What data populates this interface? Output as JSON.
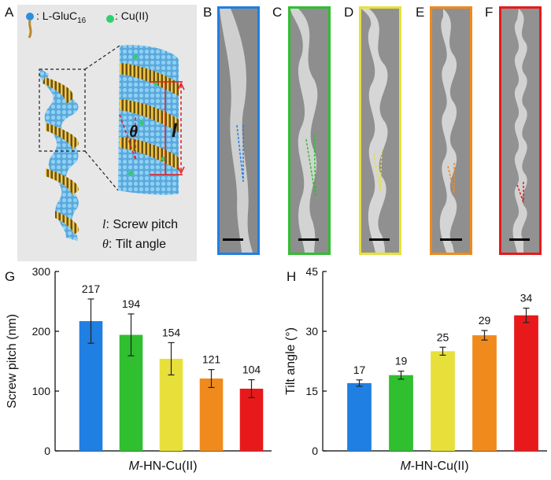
{
  "panels": {
    "a": "A",
    "b": "B",
    "c": "C",
    "d": "D",
    "e": "E",
    "f": "F",
    "g": "G",
    "h": "H"
  },
  "legend": {
    "molecule_label": ": L-GluC",
    "molecule_sub": "16",
    "ion_label": ": Cu(II)"
  },
  "schematic": {
    "theta_symbol": "θ",
    "l_symbol": "l",
    "pitch_def_symbol": "l",
    "pitch_def_text": ": Screw pitch",
    "tilt_def_symbol": "θ",
    "tilt_def_text": ": Tilt angle"
  },
  "colors": {
    "blue": "#1f7fe3",
    "green": "#2fbf2f",
    "yellow": "#e8e03a",
    "orange": "#f08a1c",
    "red": "#e8191b"
  },
  "chart_data": [
    {
      "type": "bar",
      "panel": "G",
      "xlabel_italic": "M",
      "xlabel_rest": "-HN-Cu(II)",
      "ylabel": "Screw pitch (nm)",
      "ylim": [
        0,
        300
      ],
      "yticks": [
        0,
        100,
        200,
        300
      ],
      "values": [
        217,
        194,
        154,
        121,
        104
      ],
      "value_labels": [
        "217",
        "194",
        "154",
        "121",
        "104"
      ],
      "errors": [
        37,
        35,
        27,
        15,
        15
      ],
      "bar_colors": [
        "#1f7fe3",
        "#2fbf2f",
        "#e8e03a",
        "#f08a1c",
        "#e8191b"
      ]
    },
    {
      "type": "bar",
      "panel": "H",
      "xlabel_italic": "M",
      "xlabel_rest": "-HN-Cu(II)",
      "ylabel": "Tilt angle (°)",
      "ylim": [
        0,
        45
      ],
      "yticks": [
        0,
        15,
        30,
        45
      ],
      "values": [
        17,
        19,
        25,
        29,
        34
      ],
      "value_labels": [
        "17",
        "19",
        "25",
        "29",
        "34"
      ],
      "errors": [
        0.8,
        1.0,
        1.0,
        1.2,
        1.8
      ],
      "bar_colors": [
        "#1f7fe3",
        "#2fbf2f",
        "#e8e03a",
        "#f08a1c",
        "#e8191b"
      ]
    }
  ]
}
